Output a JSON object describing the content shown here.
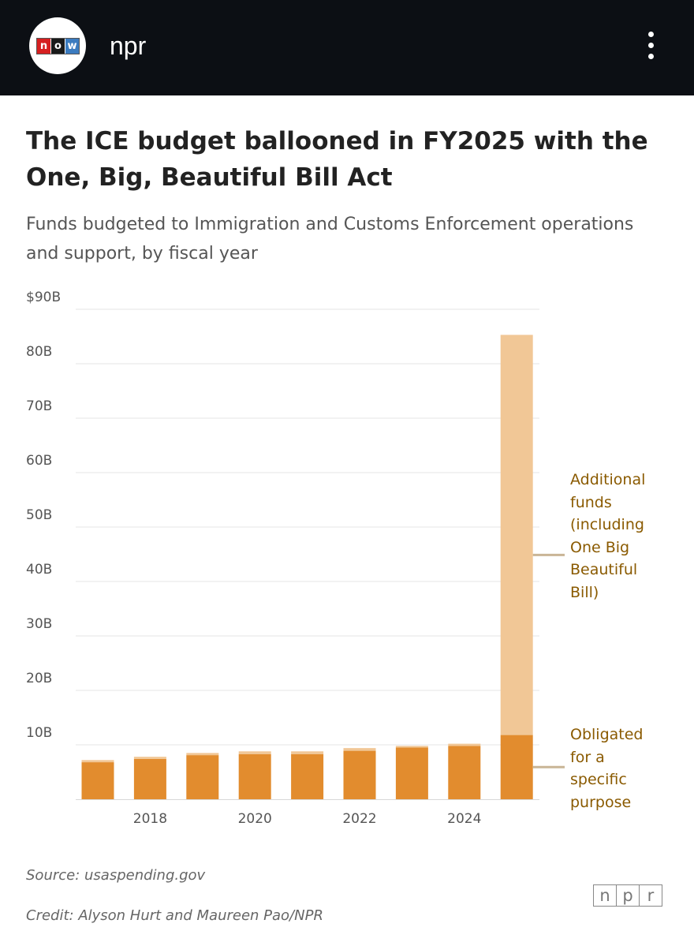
{
  "header": {
    "account_name": "npr",
    "logo_letters": [
      "n",
      "o",
      "w"
    ],
    "logo_colors": [
      "#d62021",
      "#1a1a1a",
      "#3b7bbf"
    ],
    "menu_icon": "more-vertical-icon"
  },
  "chart_data": {
    "type": "bar",
    "stacked": true,
    "title": "The ICE budget ballooned in FY2025 with the One, Big, Beautiful Bill Act",
    "subtitle": "Funds budgeted to Immigration and Customs Enforcement operations and support, by fiscal year",
    "x": [
      2017,
      2018,
      2019,
      2020,
      2021,
      2022,
      2023,
      2024,
      2025
    ],
    "x_tick_labels": [
      "2018",
      "2020",
      "2022",
      "2024"
    ],
    "x_tick_values": [
      2018,
      2020,
      2022,
      2024
    ],
    "y_tick_labels": [
      "$90B",
      "80B",
      "70B",
      "60B",
      "50B",
      "40B",
      "30B",
      "20B",
      "10B"
    ],
    "y_tick_values": [
      90,
      80,
      70,
      60,
      50,
      40,
      30,
      20,
      10
    ],
    "ylim": [
      0,
      90
    ],
    "grid": true,
    "series": [
      {
        "name": "Obligated for a specific purpose",
        "color": "#e28c2e",
        "values": [
          6.8,
          7.4,
          8.1,
          8.3,
          8.3,
          8.9,
          9.5,
          9.8,
          11.8
        ]
      },
      {
        "name": "Additional funds (including One Big Beautiful Bill)",
        "color": "#f1c796",
        "values": [
          0.4,
          0.4,
          0.4,
          0.5,
          0.5,
          0.5,
          0.3,
          0.4,
          73.5
        ]
      }
    ],
    "annotations": [
      {
        "series": 1,
        "lines": [
          "Additional",
          "funds",
          "(including",
          "One Big",
          "Beautiful",
          "Bill)"
        ]
      },
      {
        "series": 0,
        "lines": [
          "Obligated",
          "for a",
          "specific",
          "purpose"
        ]
      }
    ],
    "annotation_color": "#8a5a00",
    "grid_color": "#e4e4e4",
    "connector_color": "#c9b596"
  },
  "footer": {
    "source": "Source: usaspending.gov",
    "credit": "Credit: Alyson Hurt and Maureen Pao/NPR",
    "logo_letters": [
      "n",
      "p",
      "r"
    ]
  }
}
